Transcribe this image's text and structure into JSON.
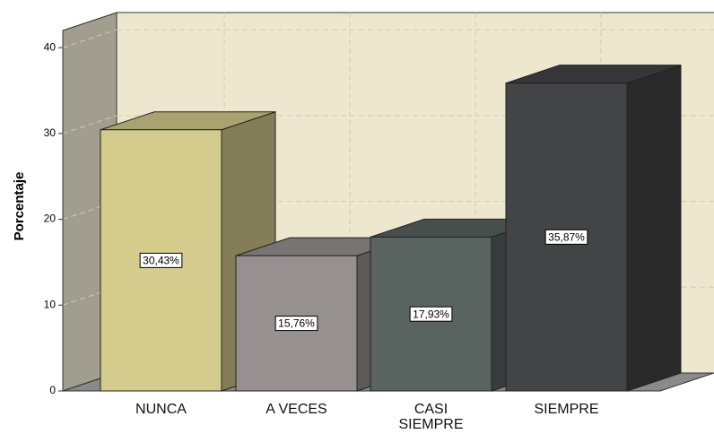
{
  "chart_data": {
    "type": "bar3d",
    "ylabel": "Porcentaje",
    "categories": [
      "NUNCA",
      "A VECES",
      "CASI SIEMPRE",
      "SIEMPRE"
    ],
    "values": [
      30.43,
      15.76,
      17.93,
      35.87
    ],
    "value_labels": [
      "30,43%",
      "15,76%",
      "17,93%",
      "35,87%"
    ],
    "colors": [
      "#d4cb8c",
      "#969190",
      "#596360",
      "#434446"
    ],
    "ylim": [
      0,
      42
    ],
    "yticks": [
      0,
      10,
      20,
      30,
      40
    ],
    "grid": true
  }
}
